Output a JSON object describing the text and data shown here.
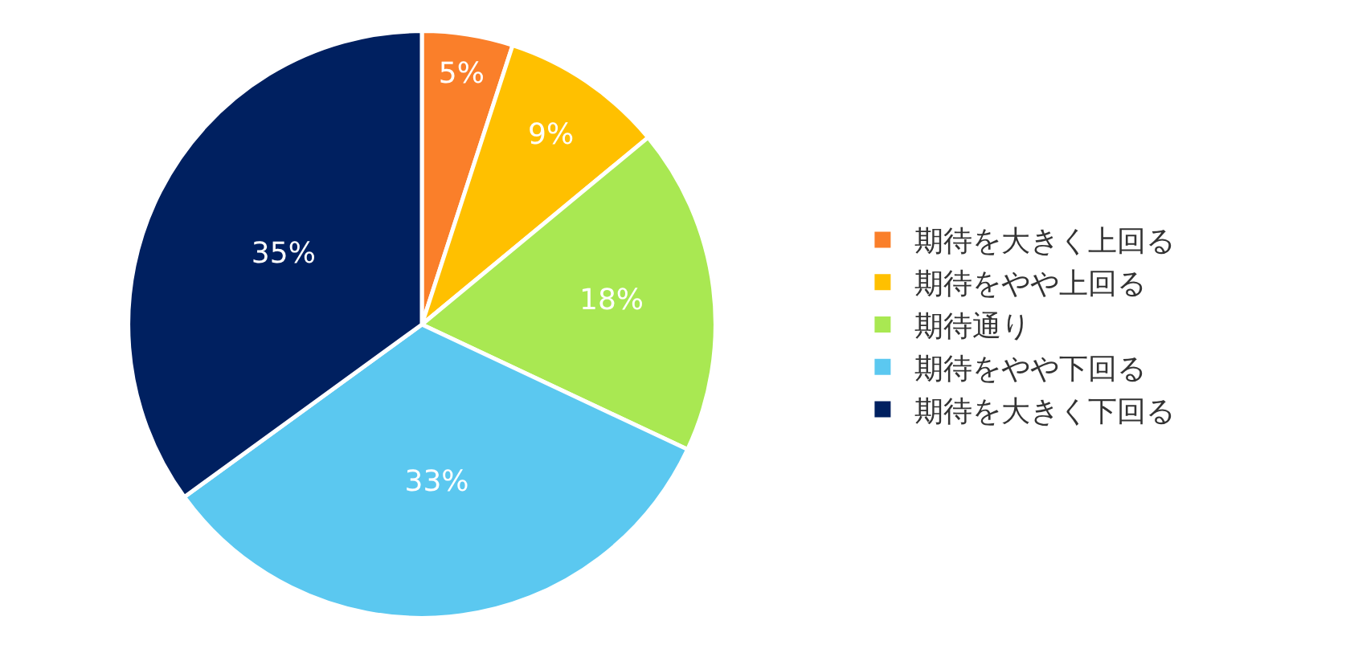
{
  "chart_data": {
    "type": "pie",
    "categories": [
      "期待を大きく上回る",
      "期待をやや上回る",
      "期待通り",
      "期待をやや下回る",
      "期待を大きく下回る"
    ],
    "values": [
      5,
      9,
      18,
      33,
      35
    ],
    "colors": [
      "#fa7f2a",
      "#ffc000",
      "#a9e852",
      "#5bc8f0",
      "#002060"
    ],
    "value_labels": [
      "5%",
      "9%",
      "18%",
      "33%",
      "35%"
    ],
    "legend": "right"
  }
}
